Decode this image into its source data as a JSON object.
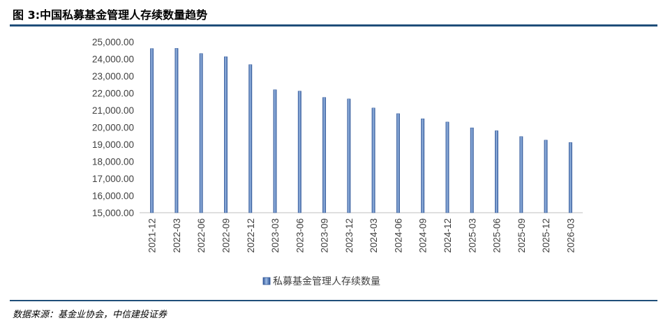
{
  "header": {
    "title": "图 3:中国私募基金管理人存续数量趋势"
  },
  "footer": {
    "source": "数据来源：基金业协会，中信建投证券"
  },
  "chart_data": {
    "type": "bar",
    "categories": [
      "2021-12",
      "2022-03",
      "2022-06",
      "2022-09",
      "2022-12",
      "2023-03",
      "2023-06",
      "2023-09",
      "2023-12",
      "2024-03",
      "2024-06",
      "2024-09",
      "2024-12",
      "2025-03",
      "2025-06",
      "2025-09",
      "2025-12",
      "2026-03"
    ],
    "series": [
      {
        "name": "私募基金管理人存续数量",
        "values": [
          24610,
          24620,
          24320,
          24130,
          23670,
          22200,
          22120,
          21750,
          21660,
          21130,
          20800,
          20500,
          20310,
          19970,
          19800,
          19460,
          19250,
          19110
        ]
      }
    ],
    "y_tick_labels": [
      "25,000.00",
      "24,000.00",
      "23,000.00",
      "22,000.00",
      "21,000.00",
      "20,000.00",
      "19,000.00",
      "18,000.00",
      "17,000.00",
      "16,000.00",
      "15,000.00"
    ],
    "ylim": [
      15000,
      25000
    ],
    "xlabel": "",
    "ylabel": "",
    "grid": false,
    "legend_position": "bottom",
    "colors": {
      "bar_fill": "#6f9ad3",
      "bar_edge": "#2f5597",
      "rule": "#1f4e79"
    }
  }
}
